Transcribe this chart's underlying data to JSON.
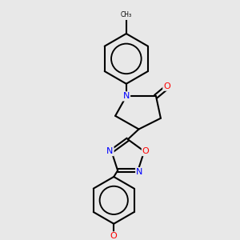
{
  "bg_color": "#e8e8e8",
  "bond_color": "#000000",
  "bond_width": 1.5,
  "aromatic_inner_scale": 0.75,
  "atom_colors": {
    "N": "#0000ff",
    "O": "#ff0000",
    "C": "#000000"
  },
  "font_size": 7.5,
  "font_size_small": 6.5
}
